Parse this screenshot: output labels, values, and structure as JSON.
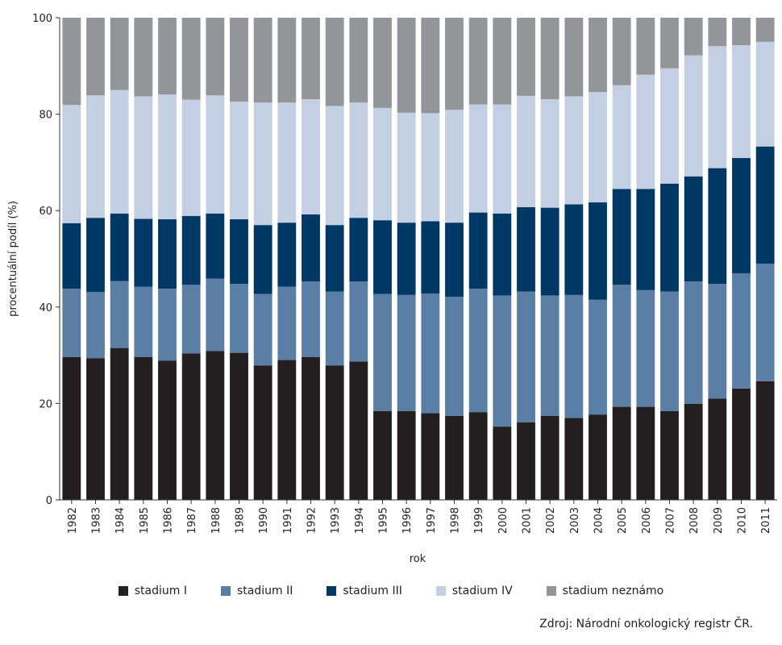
{
  "chart_data": {
    "type": "bar",
    "stacked": true,
    "xlabel": "rok",
    "ylabel": "procentuální podíl (%)",
    "ylim": [
      0,
      100
    ],
    "yticks": [
      0,
      20,
      40,
      60,
      80,
      100
    ],
    "grid": false,
    "legend_position": "bottom",
    "categories": [
      "1982",
      "1983",
      "1984",
      "1985",
      "1986",
      "1987",
      "1988",
      "1989",
      "1990",
      "1991",
      "1992",
      "1993",
      "1994",
      "1995",
      "1996",
      "1997",
      "1998",
      "1999",
      "2000",
      "2001",
      "2002",
      "2003",
      "2004",
      "2005",
      "2006",
      "2007",
      "2008",
      "2009",
      "2010",
      "2011"
    ],
    "series": [
      {
        "name": "stadium I",
        "color": "#231f20",
        "values": [
          29.6,
          29.4,
          31.5,
          29.6,
          28.9,
          30.4,
          30.9,
          30.5,
          27.9,
          29.0,
          29.6,
          27.9,
          28.7,
          18.4,
          18.4,
          18.0,
          17.4,
          18.2,
          15.2,
          16.1,
          17.4,
          17.0,
          17.7,
          19.3,
          19.3,
          18.4,
          19.9,
          21.0,
          23.1,
          24.6
        ]
      },
      {
        "name": "stadium II",
        "color": "#5b7ea5",
        "values": [
          14.2,
          13.7,
          13.9,
          14.6,
          14.9,
          14.2,
          15.0,
          14.3,
          14.8,
          15.2,
          15.7,
          15.3,
          16.6,
          24.3,
          24.1,
          24.8,
          24.7,
          25.6,
          27.2,
          27.1,
          25.0,
          25.5,
          23.8,
          25.3,
          24.2,
          24.8,
          25.4,
          23.8,
          23.9,
          24.4
        ]
      },
      {
        "name": "stadium III",
        "color": "#003865",
        "values": [
          13.6,
          15.4,
          14.0,
          14.1,
          14.4,
          14.3,
          13.5,
          13.4,
          14.3,
          13.3,
          13.9,
          13.8,
          13.2,
          15.3,
          15.0,
          15.0,
          15.4,
          15.8,
          17.0,
          17.5,
          18.2,
          18.8,
          20.2,
          19.9,
          21.0,
          22.4,
          21.8,
          24.0,
          23.9,
          24.3
        ]
      },
      {
        "name": "stadium IV",
        "color": "#c3cfe2",
        "values": [
          24.5,
          25.4,
          25.6,
          25.4,
          25.9,
          24.1,
          24.5,
          24.4,
          25.4,
          24.9,
          23.9,
          24.7,
          23.9,
          23.3,
          22.8,
          22.4,
          23.4,
          22.4,
          22.6,
          23.1,
          22.5,
          22.4,
          22.9,
          21.5,
          23.7,
          23.9,
          25.1,
          25.3,
          23.4,
          21.7
        ]
      },
      {
        "name": "stadium neznámo",
        "color": "#939598",
        "values": [
          18.1,
          16.1,
          15.0,
          16.3,
          15.9,
          17.0,
          16.1,
          17.4,
          17.6,
          17.6,
          16.9,
          18.3,
          17.6,
          18.7,
          19.7,
          19.8,
          19.1,
          18.0,
          18.0,
          16.2,
          16.9,
          16.3,
          15.4,
          14.0,
          11.8,
          10.5,
          7.8,
          5.9,
          5.7,
          5.0
        ]
      }
    ]
  },
  "source_text": "Zdroj: Národní onkologický registr ČR."
}
